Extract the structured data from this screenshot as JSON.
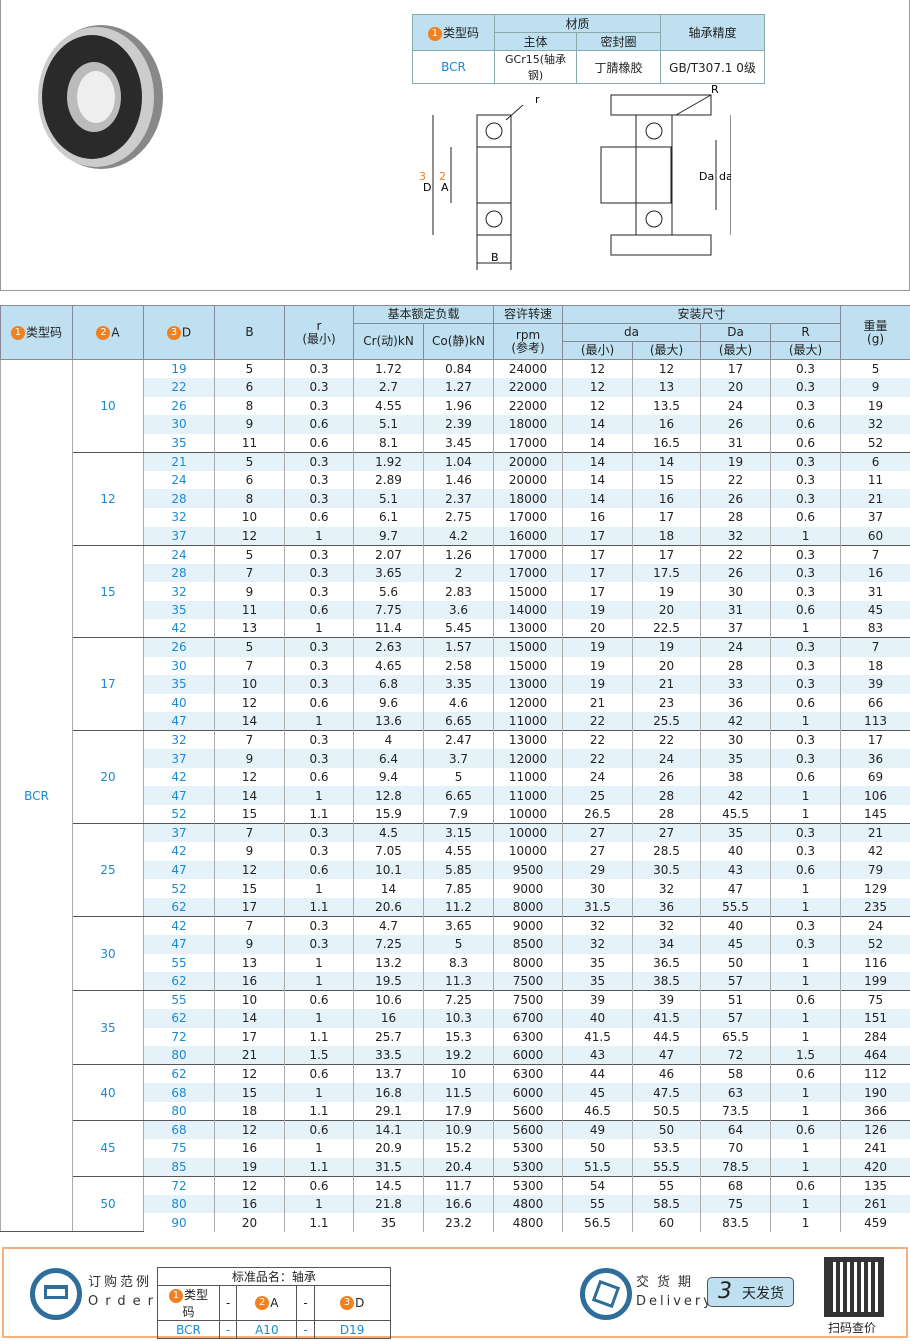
{
  "material_table": {
    "type_code_label": "类型码",
    "material": "材质",
    "body": "主体",
    "seal": "密封圈",
    "precision": "轴承精度",
    "type_code": "BCR",
    "body_value": "GCr15(轴承钢)",
    "seal_value": "丁腈橡胶",
    "precision_value": "GB/T307.1 0级"
  },
  "drawing": {
    "r": "r",
    "R": "R",
    "D": "D",
    "A": "A",
    "B": "B",
    "da": "da",
    "Da": "Da",
    "n1": "1",
    "n2": "2",
    "n3": "3"
  },
  "header": {
    "type_code": "类型码",
    "A": "A",
    "D": "D",
    "B": "B",
    "r": "r",
    "r_sub": "(最小)",
    "load": "基本额定负载",
    "cr": "Cr(动)kN",
    "co": "Co(静)kN",
    "speed": "容许转速",
    "rpm": "rpm",
    "ref": "(参考)",
    "install": "安装尺寸",
    "da": "da",
    "Da": "Da",
    "R": "R",
    "min": "(最小)",
    "max": "(最大)",
    "weight": "重量",
    "g": "(g)"
  },
  "type_code": "BCR",
  "groups": [
    {
      "A": "10",
      "rows": [
        [
          "19",
          "5",
          "0.3",
          "1.72",
          "0.84",
          "24000",
          "12",
          "12",
          "17",
          "0.3",
          "5"
        ],
        [
          "22",
          "6",
          "0.3",
          "2.7",
          "1.27",
          "22000",
          "12",
          "13",
          "20",
          "0.3",
          "9"
        ],
        [
          "26",
          "8",
          "0.3",
          "4.55",
          "1.96",
          "22000",
          "12",
          "13.5",
          "24",
          "0.3",
          "19"
        ],
        [
          "30",
          "9",
          "0.6",
          "5.1",
          "2.39",
          "18000",
          "14",
          "16",
          "26",
          "0.6",
          "32"
        ],
        [
          "35",
          "11",
          "0.6",
          "8.1",
          "3.45",
          "17000",
          "14",
          "16.5",
          "31",
          "0.6",
          "52"
        ]
      ]
    },
    {
      "A": "12",
      "rows": [
        [
          "21",
          "5",
          "0.3",
          "1.92",
          "1.04",
          "20000",
          "14",
          "14",
          "19",
          "0.3",
          "6"
        ],
        [
          "24",
          "6",
          "0.3",
          "2.89",
          "1.46",
          "20000",
          "14",
          "15",
          "22",
          "0.3",
          "11"
        ],
        [
          "28",
          "8",
          "0.3",
          "5.1",
          "2.37",
          "18000",
          "14",
          "16",
          "26",
          "0.3",
          "21"
        ],
        [
          "32",
          "10",
          "0.6",
          "6.1",
          "2.75",
          "17000",
          "16",
          "17",
          "28",
          "0.6",
          "37"
        ],
        [
          "37",
          "12",
          "1",
          "9.7",
          "4.2",
          "16000",
          "17",
          "18",
          "32",
          "1",
          "60"
        ]
      ]
    },
    {
      "A": "15",
      "rows": [
        [
          "24",
          "5",
          "0.3",
          "2.07",
          "1.26",
          "17000",
          "17",
          "17",
          "22",
          "0.3",
          "7"
        ],
        [
          "28",
          "7",
          "0.3",
          "3.65",
          "2",
          "17000",
          "17",
          "17.5",
          "26",
          "0.3",
          "16"
        ],
        [
          "32",
          "9",
          "0.3",
          "5.6",
          "2.83",
          "15000",
          "17",
          "19",
          "30",
          "0.3",
          "31"
        ],
        [
          "35",
          "11",
          "0.6",
          "7.75",
          "3.6",
          "14000",
          "19",
          "20",
          "31",
          "0.6",
          "45"
        ],
        [
          "42",
          "13",
          "1",
          "11.4",
          "5.45",
          "13000",
          "20",
          "22.5",
          "37",
          "1",
          "83"
        ]
      ]
    },
    {
      "A": "17",
      "rows": [
        [
          "26",
          "5",
          "0.3",
          "2.63",
          "1.57",
          "15000",
          "19",
          "19",
          "24",
          "0.3",
          "7"
        ],
        [
          "30",
          "7",
          "0.3",
          "4.65",
          "2.58",
          "15000",
          "19",
          "20",
          "28",
          "0.3",
          "18"
        ],
        [
          "35",
          "10",
          "0.3",
          "6.8",
          "3.35",
          "13000",
          "19",
          "21",
          "33",
          "0.3",
          "39"
        ],
        [
          "40",
          "12",
          "0.6",
          "9.6",
          "4.6",
          "12000",
          "21",
          "23",
          "36",
          "0.6",
          "66"
        ],
        [
          "47",
          "14",
          "1",
          "13.6",
          "6.65",
          "11000",
          "22",
          "25.5",
          "42",
          "1",
          "113"
        ]
      ]
    },
    {
      "A": "20",
      "rows": [
        [
          "32",
          "7",
          "0.3",
          "4",
          "2.47",
          "13000",
          "22",
          "22",
          "30",
          "0.3",
          "17"
        ],
        [
          "37",
          "9",
          "0.3",
          "6.4",
          "3.7",
          "12000",
          "22",
          "24",
          "35",
          "0.3",
          "36"
        ],
        [
          "42",
          "12",
          "0.6",
          "9.4",
          "5",
          "11000",
          "24",
          "26",
          "38",
          "0.6",
          "69"
        ],
        [
          "47",
          "14",
          "1",
          "12.8",
          "6.65",
          "11000",
          "25",
          "28",
          "42",
          "1",
          "106"
        ],
        [
          "52",
          "15",
          "1.1",
          "15.9",
          "7.9",
          "10000",
          "26.5",
          "28",
          "45.5",
          "1",
          "145"
        ]
      ]
    },
    {
      "A": "25",
      "rows": [
        [
          "37",
          "7",
          "0.3",
          "4.5",
          "3.15",
          "10000",
          "27",
          "27",
          "35",
          "0.3",
          "21"
        ],
        [
          "42",
          "9",
          "0.3",
          "7.05",
          "4.55",
          "10000",
          "27",
          "28.5",
          "40",
          "0.3",
          "42"
        ],
        [
          "47",
          "12",
          "0.6",
          "10.1",
          "5.85",
          "9500",
          "29",
          "30.5",
          "43",
          "0.6",
          "79"
        ],
        [
          "52",
          "15",
          "1",
          "14",
          "7.85",
          "9000",
          "30",
          "32",
          "47",
          "1",
          "129"
        ],
        [
          "62",
          "17",
          "1.1",
          "20.6",
          "11.2",
          "8000",
          "31.5",
          "36",
          "55.5",
          "1",
          "235"
        ]
      ]
    },
    {
      "A": "30",
      "rows": [
        [
          "42",
          "7",
          "0.3",
          "4.7",
          "3.65",
          "9000",
          "32",
          "32",
          "40",
          "0.3",
          "24"
        ],
        [
          "47",
          "9",
          "0.3",
          "7.25",
          "5",
          "8500",
          "32",
          "34",
          "45",
          "0.3",
          "52"
        ],
        [
          "55",
          "13",
          "1",
          "13.2",
          "8.3",
          "8000",
          "35",
          "36.5",
          "50",
          "1",
          "116"
        ],
        [
          "62",
          "16",
          "1",
          "19.5",
          "11.3",
          "7500",
          "35",
          "38.5",
          "57",
          "1",
          "199"
        ]
      ]
    },
    {
      "A": "35",
      "rows": [
        [
          "55",
          "10",
          "0.6",
          "10.6",
          "7.25",
          "7500",
          "39",
          "39",
          "51",
          "0.6",
          "75"
        ],
        [
          "62",
          "14",
          "1",
          "16",
          "10.3",
          "6700",
          "40",
          "41.5",
          "57",
          "1",
          "151"
        ],
        [
          "72",
          "17",
          "1.1",
          "25.7",
          "15.3",
          "6300",
          "41.5",
          "44.5",
          "65.5",
          "1",
          "284"
        ],
        [
          "80",
          "21",
          "1.5",
          "33.5",
          "19.2",
          "6000",
          "43",
          "47",
          "72",
          "1.5",
          "464"
        ]
      ]
    },
    {
      "A": "40",
      "rows": [
        [
          "62",
          "12",
          "0.6",
          "13.7",
          "10",
          "6300",
          "44",
          "46",
          "58",
          "0.6",
          "112"
        ],
        [
          "68",
          "15",
          "1",
          "16.8",
          "11.5",
          "6000",
          "45",
          "47.5",
          "63",
          "1",
          "190"
        ],
        [
          "80",
          "18",
          "1.1",
          "29.1",
          "17.9",
          "5600",
          "46.5",
          "50.5",
          "73.5",
          "1",
          "366"
        ]
      ]
    },
    {
      "A": "45",
      "rows": [
        [
          "68",
          "12",
          "0.6",
          "14.1",
          "10.9",
          "5600",
          "49",
          "50",
          "64",
          "0.6",
          "126"
        ],
        [
          "75",
          "16",
          "1",
          "20.9",
          "15.2",
          "5300",
          "50",
          "53.5",
          "70",
          "1",
          "241"
        ],
        [
          "85",
          "19",
          "1.1",
          "31.5",
          "20.4",
          "5300",
          "51.5",
          "55.5",
          "78.5",
          "1",
          "420"
        ]
      ]
    },
    {
      "A": "50",
      "rows": [
        [
          "72",
          "12",
          "0.6",
          "14.5",
          "11.7",
          "5300",
          "54",
          "55",
          "68",
          "0.6",
          "135"
        ],
        [
          "80",
          "16",
          "1",
          "21.8",
          "16.6",
          "4800",
          "55",
          "58.5",
          "75",
          "1",
          "261"
        ],
        [
          "90",
          "20",
          "1.1",
          "35",
          "23.2",
          "4800",
          "56.5",
          "60",
          "83.5",
          "1",
          "459"
        ]
      ]
    }
  ],
  "footer": {
    "order_cn": "订购范例",
    "order_en": "Order",
    "std_name": "标准品名：轴承",
    "type_code": "类型码",
    "A": "A",
    "D": "D",
    "dash": "-",
    "ex_type": "BCR",
    "ex_A": "A10",
    "ex_D": "D19",
    "delivery_cn": "交货期",
    "delivery_en": "Delivery",
    "days": "3",
    "days_label": "天发货",
    "qr_label": "扫码查价"
  },
  "colors": {
    "header_bg": "#bfe0f0",
    "stripe": "#e6f2fa",
    "accent_orange": "#f08020",
    "link_blue": "#1a8ad0"
  }
}
